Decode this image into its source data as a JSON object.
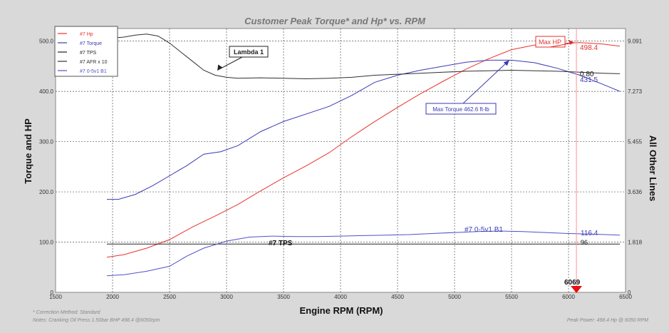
{
  "title": "Customer Peak Torque* and Hp* vs. RPM",
  "footer": {
    "correction": "* Correction Method: Standard",
    "notes": "Notes: Cranking Oil Press 1.50bar  BHP 498.4 @6050rpm",
    "peak_power": "Peak Power: 498.4 Hp @ 6050 RPM"
  },
  "chart_data": {
    "type": "line",
    "title": "Customer Peak Torque* and Hp* vs. RPM",
    "xlabel": "Engine RPM (RPM)",
    "ylabel": "Torque and HP",
    "y2label": "All Other Lines",
    "xlim": [
      1500,
      6500
    ],
    "ylim": [
      0,
      525
    ],
    "x_ticks": [
      1500,
      2000,
      2500,
      3000,
      3500,
      4000,
      4500,
      5000,
      5500,
      6000,
      6500
    ],
    "y_ticks": [
      0,
      100,
      200,
      300,
      400,
      500
    ],
    "y_tick_labels": [
      "0",
      "100.0",
      "200.0",
      "300.0",
      "400.0",
      "500.0"
    ],
    "y2_tick_labels": [
      "0",
      "1.818",
      "3.636",
      "5.455",
      "7.273",
      "9.091"
    ],
    "grid": true,
    "legend_position": "top-left",
    "series": [
      {
        "name": "#7 Hp",
        "color": "#e8322f",
        "x": [
          1950,
          2100,
          2300,
          2500,
          2700,
          2900,
          3100,
          3300,
          3500,
          3700,
          3900,
          4100,
          4300,
          4500,
          4700,
          4900,
          5100,
          5300,
          5500,
          5700,
          5900,
          6100,
          6300,
          6450
        ],
        "y": [
          70,
          75,
          88,
          105,
          130,
          152,
          175,
          202,
          228,
          252,
          278,
          310,
          340,
          368,
          395,
          420,
          444,
          465,
          483,
          492,
          495,
          497,
          494,
          490
        ]
      },
      {
        "name": "#7 Torque",
        "color": "#3a3ab4",
        "x": [
          1950,
          2050,
          2200,
          2350,
          2500,
          2650,
          2800,
          2950,
          3100,
          3300,
          3500,
          3700,
          3900,
          4100,
          4300,
          4500,
          4700,
          4900,
          5100,
          5300,
          5500,
          5700,
          5900,
          6100,
          6300,
          6450
        ],
        "y": [
          185,
          185,
          195,
          212,
          232,
          252,
          275,
          280,
          292,
          320,
          340,
          355,
          370,
          392,
          418,
          432,
          442,
          450,
          458,
          462,
          462,
          457,
          446,
          432,
          414,
          400
        ]
      },
      {
        "name": "#7 TPS",
        "color": "#202020",
        "x": [
          1950,
          6450
        ],
        "y": [
          96,
          96
        ]
      },
      {
        "name": "#7 AFR x 10",
        "color": "#303030",
        "x": [
          1950,
          2100,
          2200,
          2300,
          2400,
          2500,
          2600,
          2700,
          2800,
          2900,
          3000,
          3100,
          3300,
          3500,
          3700,
          3900,
          4100,
          4300,
          4500,
          4700,
          4900,
          5100,
          5300,
          5500,
          5700,
          5900,
          6100,
          6300,
          6450
        ],
        "y": [
          505,
          508,
          512,
          514,
          510,
          496,
          478,
          460,
          442,
          432,
          428,
          426,
          427,
          426,
          425,
          426,
          428,
          432,
          434,
          436,
          438,
          440,
          441,
          442,
          441,
          440,
          438,
          436,
          435
        ]
      },
      {
        "name": "#7 0-5v1 B1",
        "color": "#5050c8",
        "x": [
          1950,
          2100,
          2300,
          2500,
          2650,
          2800,
          3000,
          3200,
          3400,
          3600,
          3800,
          4000,
          4200,
          4400,
          4600,
          4800,
          5000,
          5200,
          5400,
          5600,
          5800,
          6000,
          6200,
          6450
        ],
        "y": [
          33,
          35,
          42,
          52,
          72,
          88,
          102,
          110,
          112,
          111,
          111,
          112,
          113,
          114,
          115,
          117,
          119,
          121,
          122,
          121,
          119,
          117,
          116,
          114
        ]
      }
    ],
    "annotations": [
      {
        "text": "Lambda 1"
      },
      {
        "text": "Max HP"
      },
      {
        "text": "Max Torque 462.6 ft-lb"
      },
      {
        "text": "498.4"
      },
      {
        "text": "0.80"
      },
      {
        "text": "431.5"
      },
      {
        "text": "#7 0-5v1 B1"
      },
      {
        "text": "116.4"
      },
      {
        "text": "#7 TPS"
      },
      {
        "text": "96"
      },
      {
        "text": "6069"
      }
    ]
  }
}
